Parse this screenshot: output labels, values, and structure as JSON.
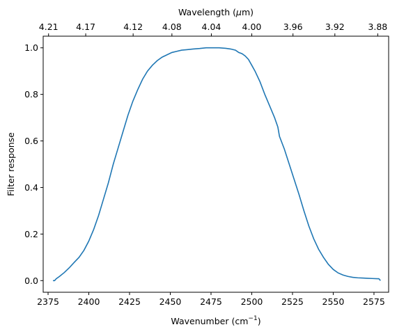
{
  "chart_data": {
    "type": "line",
    "title": "",
    "xlabel": "Wavenumber (cm",
    "xlabel_sup": "−1",
    "xlabel_close": ")",
    "ylabel": "Filter response",
    "top_xlabel": "Wavelength (",
    "top_xlabel_mu": "μ",
    "top_xlabel_rest": "m)",
    "xlim": [
      2372,
      2584
    ],
    "ylim": [
      -0.05,
      1.05
    ],
    "grid": false,
    "line_color": "#1f77b4",
    "x_ticks": [
      2375,
      2400,
      2425,
      2450,
      2475,
      2500,
      2525,
      2550,
      2575
    ],
    "x_tick_labels": [
      "2375",
      "2400",
      "2425",
      "2450",
      "2475",
      "2500",
      "2525",
      "2550",
      "2575"
    ],
    "y_ticks": [
      0.0,
      0.2,
      0.4,
      0.6,
      0.8,
      1.0
    ],
    "y_tick_labels": [
      "0.0",
      "0.2",
      "0.4",
      "0.6",
      "0.8",
      "1.0"
    ],
    "top_ticks_wavelength": [
      "4.21",
      "4.17",
      "4.12",
      "4.08",
      "4.04",
      "4.00",
      "3.96",
      "3.92",
      "3.88"
    ],
    "top_ticks_wavenumber": [
      2375.3,
      2398.1,
      2427.2,
      2451.0,
      2475.2,
      2500.0,
      2525.3,
      2551.0,
      2577.3
    ],
    "series": [
      {
        "x": [
          2378,
          2379,
          2380,
          2382,
          2385,
          2388,
          2391,
          2394,
          2397,
          2400,
          2403,
          2406,
          2409,
          2412,
          2415,
          2418,
          2421,
          2424,
          2427,
          2430,
          2433,
          2436,
          2439,
          2442,
          2445,
          2448,
          2451,
          2454,
          2457,
          2460,
          2464,
          2468,
          2472,
          2476,
          2480,
          2484,
          2487,
          2490,
          2492,
          2494,
          2496,
          2498,
          2500,
          2502,
          2505,
          2508,
          2511,
          2514,
          2516,
          2517,
          2520,
          2523,
          2526,
          2529,
          2532,
          2535,
          2538,
          2541,
          2544,
          2547,
          2550,
          2553,
          2556,
          2559,
          2562,
          2565,
          2568,
          2571,
          2574,
          2577,
          2578,
          2579
        ],
        "y": [
          0.0,
          0.0,
          0.008,
          0.018,
          0.035,
          0.055,
          0.078,
          0.1,
          0.13,
          0.17,
          0.22,
          0.28,
          0.35,
          0.42,
          0.5,
          0.57,
          0.64,
          0.71,
          0.77,
          0.82,
          0.865,
          0.9,
          0.925,
          0.945,
          0.96,
          0.97,
          0.98,
          0.985,
          0.99,
          0.992,
          0.995,
          0.997,
          1.0,
          1.0,
          1.0,
          0.998,
          0.995,
          0.99,
          0.98,
          0.975,
          0.965,
          0.95,
          0.925,
          0.9,
          0.855,
          0.8,
          0.75,
          0.7,
          0.66,
          0.62,
          0.565,
          0.5,
          0.435,
          0.37,
          0.3,
          0.235,
          0.18,
          0.135,
          0.1,
          0.07,
          0.048,
          0.033,
          0.024,
          0.018,
          0.014,
          0.012,
          0.011,
          0.01,
          0.009,
          0.008,
          0.008,
          0.0
        ]
      }
    ]
  }
}
